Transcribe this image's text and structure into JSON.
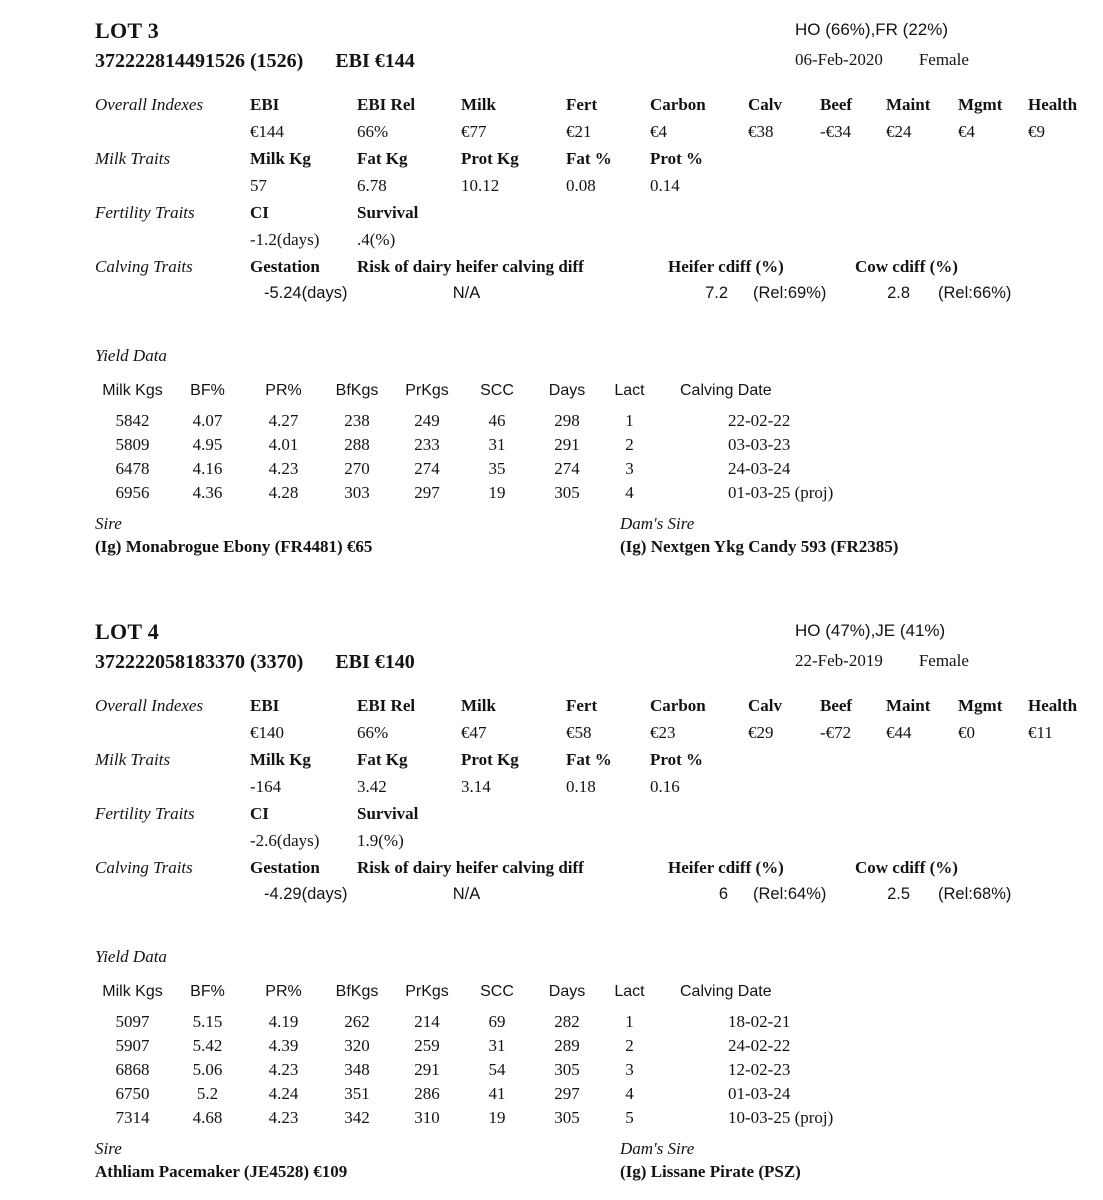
{
  "colors": {
    "text": "#131313",
    "background": "#ffffff"
  },
  "lots": [
    {
      "lot_title": "LOT 3",
      "tag": "372222814491526 (1526)",
      "ebi_headline": "EBI €144",
      "breed": "HO (66%),FR (22%)",
      "dob": "06-Feb-2020",
      "sex": "Female",
      "overall": {
        "label": "Overall Indexes",
        "headers": [
          "EBI",
          "EBI Rel",
          "Milk",
          "Fert",
          "Carbon",
          "Calv",
          "Beef",
          "Maint",
          "Mgmt",
          "Health"
        ],
        "values": [
          "€144",
          "66%",
          "€77",
          "€21",
          "€4",
          "€38",
          "-€34",
          "€24",
          "€4",
          "€9"
        ]
      },
      "milk": {
        "label": "Milk Traits",
        "headers": [
          "Milk Kg",
          "Fat Kg",
          "Prot Kg",
          "Fat %",
          "Prot %"
        ],
        "values": [
          "57",
          "6.78",
          "10.12",
          "0.08",
          "0.14"
        ]
      },
      "fertility": {
        "label": "Fertility Traits",
        "headers": [
          "CI",
          "Survival"
        ],
        "values": [
          "-1.2(days)",
          ".4(%)"
        ]
      },
      "calving": {
        "label": "Calving Traits",
        "gestation_header": "Gestation",
        "gestation_value": "-5.24(days)",
        "risk_header": "Risk of dairy heifer calving diff",
        "risk_value": "N/A",
        "heifer_header": "Heifer cdiff (%)",
        "heifer_value": "7.2",
        "heifer_rel": "(Rel:69%)",
        "cow_header": "Cow cdiff (%)",
        "cow_value": "2.8",
        "cow_rel": "(Rel:66%)"
      },
      "yield": {
        "label": "Yield Data",
        "headers": [
          "Milk Kgs",
          "BF%",
          "PR%",
          "BfKgs",
          "PrKgs",
          "SCC",
          "Days",
          "Lact",
          "Calving Date"
        ],
        "rows": [
          [
            "5842",
            "4.07",
            "4.27",
            "238",
            "249",
            "46",
            "298",
            "1",
            "22-02-22"
          ],
          [
            "5809",
            "4.95",
            "4.01",
            "288",
            "233",
            "31",
            "291",
            "2",
            "03-03-23"
          ],
          [
            "6478",
            "4.16",
            "4.23",
            "270",
            "274",
            "35",
            "274",
            "3",
            "24-03-24"
          ],
          [
            "6956",
            "4.36",
            "4.28",
            "303",
            "297",
            "19",
            "305",
            "4",
            "01-03-25 (proj)"
          ]
        ]
      },
      "sire_label": "Sire",
      "sire": "(Ig) Monabrogue Ebony (FR4481) €65",
      "dams_sire_label": "Dam's Sire",
      "dams_sire": "(Ig) Nextgen Ykg Candy 593 (FR2385)"
    },
    {
      "lot_title": "LOT 4",
      "tag": "372222058183370 (3370)",
      "ebi_headline": "EBI €140",
      "breed": "HO (47%),JE (41%)",
      "dob": "22-Feb-2019",
      "sex": "Female",
      "overall": {
        "label": "Overall Indexes",
        "headers": [
          "EBI",
          "EBI Rel",
          "Milk",
          "Fert",
          "Carbon",
          "Calv",
          "Beef",
          "Maint",
          "Mgmt",
          "Health"
        ],
        "values": [
          "€140",
          "66%",
          "€47",
          "€58",
          "€23",
          "€29",
          "-€72",
          "€44",
          "€0",
          "€11"
        ]
      },
      "milk": {
        "label": "Milk Traits",
        "headers": [
          "Milk Kg",
          "Fat Kg",
          "Prot Kg",
          "Fat %",
          "Prot %"
        ],
        "values": [
          "-164",
          "3.42",
          "3.14",
          "0.18",
          "0.16"
        ]
      },
      "fertility": {
        "label": "Fertility Traits",
        "headers": [
          "CI",
          "Survival"
        ],
        "values": [
          "-2.6(days)",
          "1.9(%)"
        ]
      },
      "calving": {
        "label": "Calving Traits",
        "gestation_header": "Gestation",
        "gestation_value": "-4.29(days)",
        "risk_header": "Risk of dairy heifer calving diff",
        "risk_value": "N/A",
        "heifer_header": "Heifer cdiff (%)",
        "heifer_value": "6",
        "heifer_rel": "(Rel:64%)",
        "cow_header": "Cow cdiff (%)",
        "cow_value": "2.5",
        "cow_rel": "(Rel:68%)"
      },
      "yield": {
        "label": "Yield Data",
        "headers": [
          "Milk Kgs",
          "BF%",
          "PR%",
          "BfKgs",
          "PrKgs",
          "SCC",
          "Days",
          "Lact",
          "Calving Date"
        ],
        "rows": [
          [
            "5097",
            "5.15",
            "4.19",
            "262",
            "214",
            "69",
            "282",
            "1",
            "18-02-21"
          ],
          [
            "5907",
            "5.42",
            "4.39",
            "320",
            "259",
            "31",
            "289",
            "2",
            "24-02-22"
          ],
          [
            "6868",
            "5.06",
            "4.23",
            "348",
            "291",
            "54",
            "305",
            "3",
            "12-02-23"
          ],
          [
            "6750",
            "5.2",
            "4.24",
            "351",
            "286",
            "41",
            "297",
            "4",
            "01-03-24"
          ],
          [
            "7314",
            "4.68",
            "4.23",
            "342",
            "310",
            "19",
            "305",
            "5",
            "10-03-25 (proj)"
          ]
        ]
      },
      "sire_label": "Sire",
      "sire": "Athliam Pacemaker (JE4528) €109",
      "dams_sire_label": "Dam's Sire",
      "dams_sire": "(Ig) Lissane Pirate (PSZ)"
    }
  ]
}
